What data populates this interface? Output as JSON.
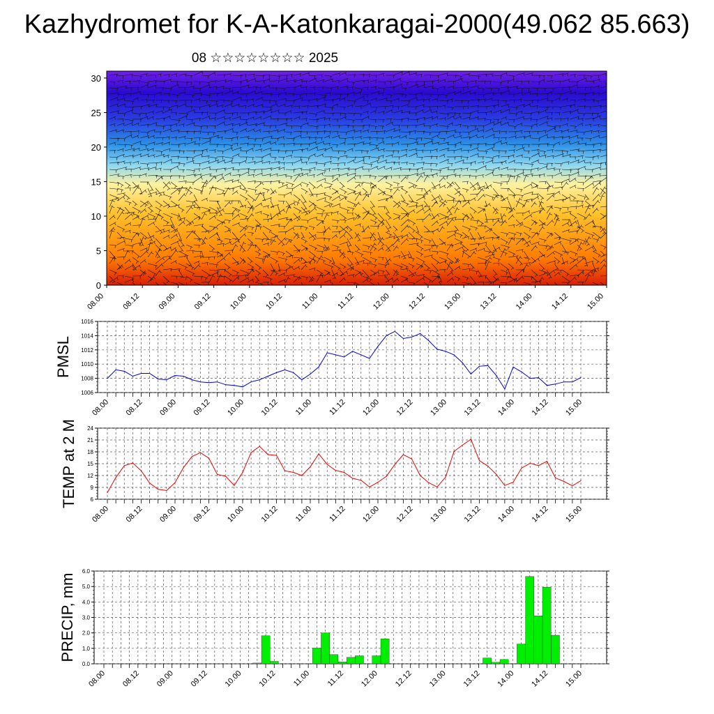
{
  "header": {
    "title": "Kazhydromet for K-A-Katonkaragai-2000(49.062 85.663)",
    "subtitle": "08 ☆☆☆☆☆☆☆☆ 2025"
  },
  "colors": {
    "pmsl": "#0000dd",
    "temp": "#ee0000",
    "precip": "#00ee00",
    "grid": "#555555"
  },
  "chart_data": [
    {
      "type": "heatmap",
      "name": "wind-temperature-cross-section",
      "x_ticks": [
        "08.00",
        "08.12",
        "09.00",
        "09.12",
        "10.00",
        "10.12",
        "11.00",
        "11.12",
        "12.00",
        "12.12",
        "13.00",
        "13.12",
        "14.00",
        "14.12",
        "15.00"
      ],
      "y_ticks": [
        0,
        5,
        10,
        15,
        20,
        25,
        30
      ],
      "ylim": [
        0,
        31
      ],
      "overlay": "wind barbs",
      "colormap": [
        "#d81e05",
        "#ff7a00",
        "#ffc02a",
        "#fff2a0",
        "#8fd8f0",
        "#2b8fe6",
        "#2a3ae0",
        "#2a0ad0",
        "#7020e8"
      ]
    },
    {
      "type": "line",
      "ylabel": "PMSL",
      "ylim": [
        1006,
        1016
      ],
      "y_ticks": [
        1006,
        1008,
        1010,
        1012,
        1014,
        1016
      ],
      "x_ticks": [
        "08.00",
        "08.12",
        "09.00",
        "09.12",
        "10.00",
        "10.12",
        "11.00",
        "11.12",
        "12.00",
        "12.12",
        "13.00",
        "13.12",
        "14.00",
        "14.12",
        "15.00"
      ],
      "series": [
        {
          "values": [
            1008.0,
            1009.2,
            1009.0,
            1008.3,
            1008.7,
            1008.7,
            1007.9,
            1007.8,
            1008.4,
            1008.3,
            1007.8,
            1007.5,
            1007.4,
            1007.5,
            1007.1,
            1007.0,
            1006.8,
            1007.5,
            1007.8,
            1008.3,
            1008.8,
            1009.2,
            1008.8,
            1007.8,
            1008.6,
            1009.6,
            1011.6,
            1011.3,
            1011.0,
            1011.8,
            1011.3,
            1010.8,
            1012.5,
            1014.0,
            1014.6,
            1013.6,
            1013.8,
            1014.3,
            1013.3,
            1012.1,
            1011.8,
            1011.3,
            1010.2,
            1008.6,
            1009.7,
            1009.8,
            1008.4,
            1006.5,
            1009.6,
            1008.9,
            1008.0,
            1008.1,
            1007.0,
            1007.2,
            1007.5,
            1007.5,
            1008.1
          ]
        }
      ]
    },
    {
      "type": "line",
      "ylabel": "TEMP at 2 M",
      "ylim": [
        6,
        24
      ],
      "y_ticks": [
        6,
        9,
        12,
        15,
        18,
        21,
        24
      ],
      "x_ticks": [
        "08.00",
        "08.12",
        "09.00",
        "09.12",
        "10.00",
        "10.12",
        "11.00",
        "11.12",
        "12.00",
        "12.12",
        "13.00",
        "13.12",
        "14.00",
        "14.12",
        "15.00"
      ],
      "series": [
        {
          "values": [
            7.7,
            11.5,
            14.5,
            15.2,
            13.2,
            10.1,
            8.5,
            8.2,
            10.2,
            14.0,
            16.8,
            17.8,
            16.4,
            12.3,
            11.8,
            9.5,
            12.8,
            17.8,
            19.4,
            17.3,
            17.1,
            13.2,
            12.8,
            12.0,
            14.2,
            17.5,
            14.8,
            13.3,
            12.8,
            11.3,
            10.8,
            9.1,
            10.3,
            11.8,
            14.8,
            17.3,
            16.2,
            12.0,
            10.2,
            9.1,
            11.6,
            18.1,
            19.7,
            21.2,
            15.8,
            14.4,
            12.3,
            9.5,
            10.3,
            13.9,
            15.1,
            14.5,
            15.6,
            11.4,
            10.5,
            9.4,
            10.7
          ]
        }
      ]
    },
    {
      "type": "bar",
      "ylabel": "PRECIP, mm",
      "ylim": [
        0,
        6
      ],
      "y_ticks": [
        "0.0",
        "1.0",
        "2.0",
        "3.0",
        "4.0",
        "5.0",
        "6.0"
      ],
      "x_ticks": [
        "08.00",
        "08.12",
        "09.00",
        "09.12",
        "10.00",
        "10.12",
        "11.00",
        "11.12",
        "12.00",
        "12.12",
        "13.00",
        "13.12",
        "14.00",
        "14.12",
        "15.00"
      ],
      "series": [
        {
          "values": [
            0,
            0,
            0,
            0,
            0,
            0,
            0,
            0,
            0,
            0,
            0,
            0,
            0,
            0,
            0,
            0,
            0,
            0,
            0.05,
            1.82,
            0.16,
            0,
            0,
            0,
            0,
            1.02,
            2.0,
            0.6,
            0.12,
            0.42,
            0.52,
            0,
            0.52,
            1.62,
            0,
            0,
            0,
            0,
            0,
            0,
            0,
            0,
            0,
            0,
            0,
            0.38,
            0.1,
            0.28,
            0,
            1.28,
            5.65,
            3.1,
            4.95,
            1.85,
            0,
            0,
            0
          ]
        }
      ]
    }
  ]
}
